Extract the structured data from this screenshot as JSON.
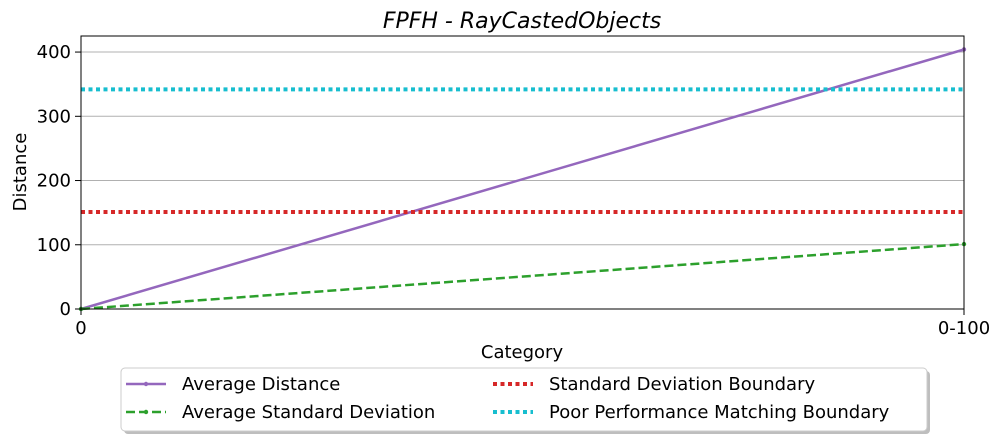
{
  "chart_data": {
    "type": "line",
    "title": "FPFH - RayCastedObjects",
    "xlabel": "Category",
    "ylabel": "Distance",
    "categories": [
      "0",
      "0-100"
    ],
    "ylim": [
      0,
      425
    ],
    "yticks": [
      0,
      100,
      200,
      300,
      400
    ],
    "grid": "horizontal",
    "legend_position": "bottom-center",
    "series": [
      {
        "name": "Average Distance",
        "values": [
          0,
          404
        ],
        "color": "#9467bd",
        "style": "solid-marker"
      },
      {
        "name": "Average Standard Deviation",
        "values": [
          0,
          101
        ],
        "color": "#2ca02c",
        "style": "dashed-marker"
      },
      {
        "name": "Standard Deviation Boundary",
        "values": [
          151,
          151
        ],
        "color": "#d62728",
        "style": "dotted"
      },
      {
        "name": "Poor Performance Matching Boundary",
        "values": [
          342,
          342
        ],
        "color": "#17becf",
        "style": "dotted"
      }
    ]
  }
}
